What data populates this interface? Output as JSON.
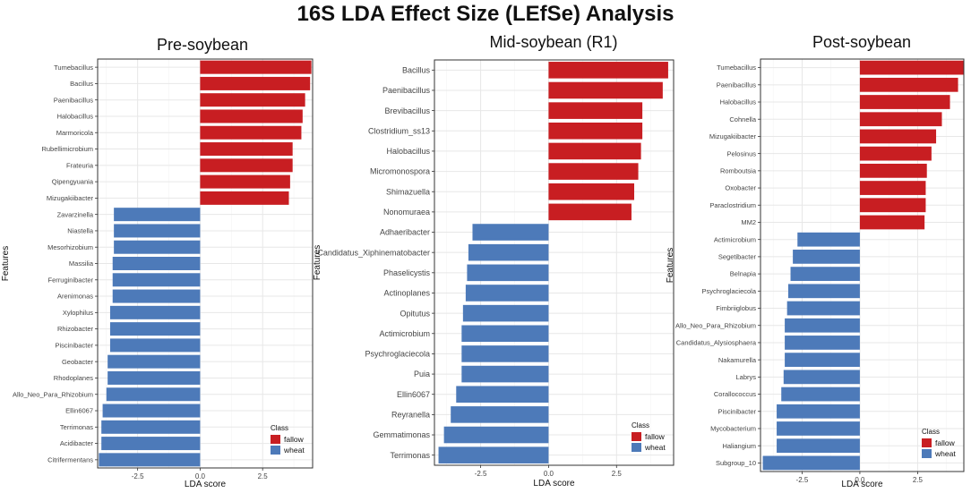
{
  "figure": {
    "title": "16S LDA Effect Size (LEfSe) Analysis"
  },
  "colors": {
    "fallow": "#c81e22",
    "wheat": "#4d7ab9",
    "panel_bg": "#ffffff",
    "grid": "#e7e7e7",
    "axis_text": "#444444"
  },
  "chart_data": [
    {
      "type": "bar",
      "orientation": "horizontal",
      "title": "Pre-soybean",
      "xlabel": "LDA score",
      "ylabel": "Features",
      "xlim": [
        -4.1,
        4.5
      ],
      "xticks": [
        -2.5,
        0.0,
        2.5
      ],
      "xtick_labels": [
        "-2.5",
        "0.0",
        "2.5"
      ],
      "legend": {
        "title": "Class",
        "position": "bottom-right",
        "entries": [
          "fallow",
          "wheat"
        ]
      },
      "bars": [
        {
          "feature": "Tumebacillus",
          "value": 4.45,
          "class": "fallow"
        },
        {
          "feature": "Bacillus",
          "value": 4.4,
          "class": "fallow"
        },
        {
          "feature": "Paenibacillus",
          "value": 4.2,
          "class": "fallow"
        },
        {
          "feature": "Halobacillus",
          "value": 4.1,
          "class": "fallow"
        },
        {
          "feature": "Marmoricola",
          "value": 4.05,
          "class": "fallow"
        },
        {
          "feature": "Rubellimicrobium",
          "value": 3.7,
          "class": "fallow"
        },
        {
          "feature": "Frateuria",
          "value": 3.7,
          "class": "fallow"
        },
        {
          "feature": "Qipengyuania",
          "value": 3.6,
          "class": "fallow"
        },
        {
          "feature": "Mizugakiibacter",
          "value": 3.55,
          "class": "fallow"
        },
        {
          "feature": "Zavarzinella",
          "value": -3.45,
          "class": "wheat"
        },
        {
          "feature": "Niastella",
          "value": -3.45,
          "class": "wheat"
        },
        {
          "feature": "Mesorhizobium",
          "value": -3.45,
          "class": "wheat"
        },
        {
          "feature": "Massilia",
          "value": -3.5,
          "class": "wheat"
        },
        {
          "feature": "Ferruginibacter",
          "value": -3.5,
          "class": "wheat"
        },
        {
          "feature": "Arenimonas",
          "value": -3.5,
          "class": "wheat"
        },
        {
          "feature": "Xylophilus",
          "value": -3.6,
          "class": "wheat"
        },
        {
          "feature": "Rhizobacter",
          "value": -3.6,
          "class": "wheat"
        },
        {
          "feature": "Piscinibacter",
          "value": -3.6,
          "class": "wheat"
        },
        {
          "feature": "Geobacter",
          "value": -3.7,
          "class": "wheat"
        },
        {
          "feature": "Rhodoplanes",
          "value": -3.7,
          "class": "wheat"
        },
        {
          "feature": "Allo_Neo_Para_Rhizobium",
          "value": -3.75,
          "class": "wheat"
        },
        {
          "feature": "Ellin6067",
          "value": -3.9,
          "class": "wheat"
        },
        {
          "feature": "Terrimonas",
          "value": -3.95,
          "class": "wheat"
        },
        {
          "feature": "Acidibacter",
          "value": -3.95,
          "class": "wheat"
        },
        {
          "feature": "Citrifermentans",
          "value": -4.05,
          "class": "wheat"
        }
      ]
    },
    {
      "type": "bar",
      "orientation": "horizontal",
      "title": "Mid-soybean (R1)",
      "xlabel": "LDA score",
      "ylabel": "Features",
      "xlim": [
        -4.2,
        4.6
      ],
      "xticks": [
        -2.5,
        0.0,
        2.5
      ],
      "xtick_labels": [
        "-2.5",
        "0.0",
        "2.5"
      ],
      "legend": {
        "title": "Class",
        "position": "bottom-right",
        "entries": [
          "fallow",
          "wheat"
        ]
      },
      "bars": [
        {
          "feature": "Bacillus",
          "value": 4.4,
          "class": "fallow"
        },
        {
          "feature": "Paenibacillus",
          "value": 4.2,
          "class": "fallow"
        },
        {
          "feature": "Brevibacillus",
          "value": 3.45,
          "class": "fallow"
        },
        {
          "feature": "Clostridium_ss13",
          "value": 3.45,
          "class": "fallow"
        },
        {
          "feature": "Halobacillus",
          "value": 3.4,
          "class": "fallow"
        },
        {
          "feature": "Micromonospora",
          "value": 3.3,
          "class": "fallow"
        },
        {
          "feature": "Shimazuella",
          "value": 3.15,
          "class": "fallow"
        },
        {
          "feature": "Nonomuraea",
          "value": 3.05,
          "class": "fallow"
        },
        {
          "feature": "Adhaeribacter",
          "value": -2.8,
          "class": "wheat"
        },
        {
          "feature": "Candidatus_Xiphinematobacter",
          "value": -2.95,
          "class": "wheat"
        },
        {
          "feature": "Phaselicystis",
          "value": -3.0,
          "class": "wheat"
        },
        {
          "feature": "Actinoplanes",
          "value": -3.05,
          "class": "wheat"
        },
        {
          "feature": "Opitutus",
          "value": -3.15,
          "class": "wheat"
        },
        {
          "feature": "Actimicrobium",
          "value": -3.2,
          "class": "wheat"
        },
        {
          "feature": "Psychroglaciecola",
          "value": -3.2,
          "class": "wheat"
        },
        {
          "feature": "Puia",
          "value": -3.2,
          "class": "wheat"
        },
        {
          "feature": "Ellin6067",
          "value": -3.4,
          "class": "wheat"
        },
        {
          "feature": "Reyranella",
          "value": -3.6,
          "class": "wheat"
        },
        {
          "feature": "Gemmatimonas",
          "value": -3.85,
          "class": "wheat"
        },
        {
          "feature": "Terrimonas",
          "value": -4.05,
          "class": "wheat"
        }
      ]
    },
    {
      "type": "bar",
      "orientation": "horizontal",
      "title": "Post-soybean",
      "xlabel": "LDA score",
      "ylabel": "Features",
      "xlim": [
        -4.3,
        4.5
      ],
      "xticks": [
        -2.5,
        0.0,
        2.5
      ],
      "xtick_labels": [
        "-2.5",
        "0.0",
        "2.5"
      ],
      "legend": {
        "title": "Class",
        "position": "bottom-right",
        "entries": [
          "fallow",
          "wheat"
        ]
      },
      "bars": [
        {
          "feature": "Tumebacillus",
          "value": 4.5,
          "class": "fallow"
        },
        {
          "feature": "Paenibacillus",
          "value": 4.25,
          "class": "fallow"
        },
        {
          "feature": "Halobacillus",
          "value": 3.9,
          "class": "fallow"
        },
        {
          "feature": "Cohnella",
          "value": 3.55,
          "class": "fallow"
        },
        {
          "feature": "Mizugakiibacter",
          "value": 3.3,
          "class": "fallow"
        },
        {
          "feature": "Pelosinus",
          "value": 3.1,
          "class": "fallow"
        },
        {
          "feature": "Romboutsia",
          "value": 2.9,
          "class": "fallow"
        },
        {
          "feature": "Oxobacter",
          "value": 2.85,
          "class": "fallow"
        },
        {
          "feature": "Paraclostridium",
          "value": 2.85,
          "class": "fallow"
        },
        {
          "feature": "MM2",
          "value": 2.8,
          "class": "fallow"
        },
        {
          "feature": "Actimicrobium",
          "value": -2.7,
          "class": "wheat"
        },
        {
          "feature": "Segetibacter",
          "value": -2.9,
          "class": "wheat"
        },
        {
          "feature": "Belnapia",
          "value": -3.0,
          "class": "wheat"
        },
        {
          "feature": "Psychroglaciecola",
          "value": -3.1,
          "class": "wheat"
        },
        {
          "feature": "Fimbriiglobus",
          "value": -3.15,
          "class": "wheat"
        },
        {
          "feature": "Allo_Neo_Para_Rhizobium",
          "value": -3.25,
          "class": "wheat"
        },
        {
          "feature": "Candidatus_Alysiosphaera",
          "value": -3.25,
          "class": "wheat"
        },
        {
          "feature": "Nakamurella",
          "value": -3.25,
          "class": "wheat"
        },
        {
          "feature": "Labrys",
          "value": -3.3,
          "class": "wheat"
        },
        {
          "feature": "Corallococcus",
          "value": -3.4,
          "class": "wheat"
        },
        {
          "feature": "Piscinibacter",
          "value": -3.6,
          "class": "wheat"
        },
        {
          "feature": "Mycobacterium",
          "value": -3.6,
          "class": "wheat"
        },
        {
          "feature": "Haliangium",
          "value": -3.6,
          "class": "wheat"
        },
        {
          "feature": "Subgroup_10",
          "value": -4.2,
          "class": "wheat"
        }
      ]
    }
  ]
}
